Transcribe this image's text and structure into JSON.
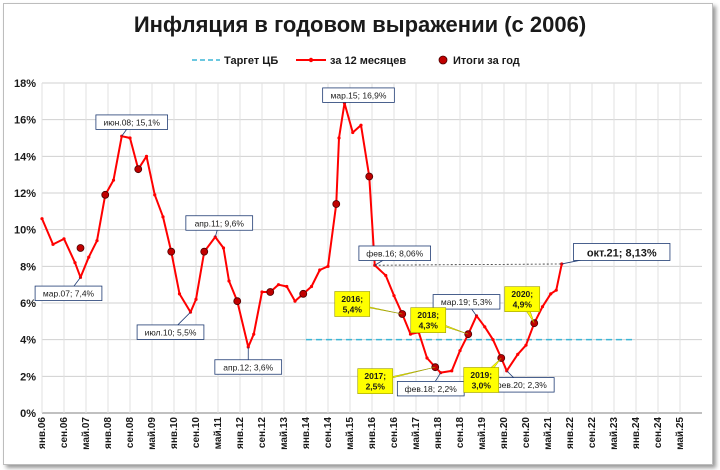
{
  "chart_data": {
    "type": "line",
    "title": "Инфляция в годовом выражении (с 2006)",
    "ylim": [
      0,
      18
    ],
    "yticks": [
      "0%",
      "2%",
      "4%",
      "6%",
      "8%",
      "10%",
      "12%",
      "14%",
      "16%",
      "18%"
    ],
    "grid": true,
    "legend_position": "top",
    "legend": [
      "Таргет ЦБ",
      "за 12 месяцев",
      "Итоги за год"
    ],
    "x_tick_labels": [
      "янв.06",
      "сен.06",
      "май.07",
      "янв.08",
      "сен.08",
      "май.09",
      "янв.10",
      "сен.10",
      "май.11",
      "янв.12",
      "сен.12",
      "май.13",
      "янв.14",
      "сен.14",
      "май.15",
      "янв.16",
      "сен.16",
      "май.17",
      "янв.18",
      "сен.18",
      "май.19",
      "янв.20",
      "сен.20",
      "май.21",
      "янв.22",
      "сен.22",
      "май.23",
      "янв.24",
      "сен.24",
      "май.25"
    ],
    "series": [
      {
        "name": "за 12 месяцев",
        "color": "#ff0000",
        "months": [
          "2006-01",
          "2006-05",
          "2006-09",
          "2007-01",
          "2007-03",
          "2007-06",
          "2007-09",
          "2007-12",
          "2008-03",
          "2008-06",
          "2008-09",
          "2008-12",
          "2009-03",
          "2009-06",
          "2009-09",
          "2009-12",
          "2010-03",
          "2010-07",
          "2010-09",
          "2010-12",
          "2011-04",
          "2011-07",
          "2011-09",
          "2011-12",
          "2012-04",
          "2012-06",
          "2012-09",
          "2012-12",
          "2013-03",
          "2013-06",
          "2013-09",
          "2013-12",
          "2014-03",
          "2014-06",
          "2014-09",
          "2014-12",
          "2015-01",
          "2015-03",
          "2015-06",
          "2015-09",
          "2015-12",
          "2016-02",
          "2016-06",
          "2016-09",
          "2016-12",
          "2017-03",
          "2017-06",
          "2017-09",
          "2017-12",
          "2018-02",
          "2018-06",
          "2018-09",
          "2018-12",
          "2019-03",
          "2019-06",
          "2019-09",
          "2019-12",
          "2020-02",
          "2020-06",
          "2020-09",
          "2020-12",
          "2021-03",
          "2021-06",
          "2021-08",
          "2021-10"
        ],
        "values": [
          10.6,
          9.2,
          9.5,
          8.2,
          7.4,
          8.5,
          9.4,
          11.9,
          12.7,
          15.1,
          15.0,
          13.3,
          14.0,
          11.9,
          10.7,
          8.8,
          6.5,
          5.5,
          6.2,
          8.8,
          9.6,
          9.0,
          7.2,
          6.1,
          3.6,
          4.3,
          6.6,
          6.6,
          7.0,
          6.9,
          6.1,
          6.5,
          6.9,
          7.8,
          8.0,
          11.4,
          15.0,
          16.9,
          15.3,
          15.7,
          12.9,
          8.06,
          7.5,
          6.4,
          5.4,
          4.3,
          4.4,
          3.0,
          2.5,
          2.2,
          2.3,
          3.4,
          4.3,
          5.3,
          4.7,
          4.0,
          3.0,
          2.3,
          3.2,
          3.7,
          4.9,
          5.8,
          6.5,
          6.7,
          8.13
        ]
      }
    ],
    "target": {
      "name": "Таргет ЦБ",
      "value": 4,
      "start": "2014-01",
      "end": "2023-12",
      "color": "#3cb6d6"
    },
    "annual_results": [
      {
        "month": "2007-12",
        "value": 11.9
      },
      {
        "month": "2008-12",
        "value": 13.3
      },
      {
        "month": "2009-12",
        "value": 8.8
      },
      {
        "month": "2010-12",
        "value": 8.8
      },
      {
        "month": "2011-12",
        "value": 6.1
      },
      {
        "month": "2012-12",
        "value": 6.6
      },
      {
        "month": "2013-12",
        "value": 6.5
      },
      {
        "month": "2014-12",
        "value": 11.4
      },
      {
        "month": "2015-12",
        "value": 12.9
      },
      {
        "month": "2016-12",
        "value": 5.4
      },
      {
        "month": "2017-12",
        "value": 2.5
      },
      {
        "month": "2018-12",
        "value": 4.3
      },
      {
        "month": "2019-12",
        "value": 3.0
      },
      {
        "month": "2020-12",
        "value": 4.9
      },
      {
        "month": "2007-03",
        "value": 9.0
      }
    ],
    "annotations": [
      {
        "text": "мар.07; 7,4%",
        "month": "2007-03",
        "value": 7.4,
        "style": "plain"
      },
      {
        "text": "июн.08; 15,1%",
        "month": "2008-06",
        "value": 15.1,
        "style": "plain"
      },
      {
        "text": "июл.10; 5,5%",
        "month": "2010-07",
        "value": 5.5,
        "style": "plain"
      },
      {
        "text": "апр.11; 9,6%",
        "month": "2011-04",
        "value": 9.6,
        "style": "plain"
      },
      {
        "text": "апр.12; 3,6%",
        "month": "2012-04",
        "value": 3.6,
        "style": "plain"
      },
      {
        "text": "мар.15; 16,9%",
        "month": "2015-03",
        "value": 16.9,
        "style": "plain"
      },
      {
        "text": "фев.16; 8,06%",
        "month": "2016-02",
        "value": 8.06,
        "style": "plain"
      },
      {
        "text": "фев.18; 2,2%",
        "month": "2018-02",
        "value": 2.2,
        "style": "plain"
      },
      {
        "text": "мар.19; 5,3%",
        "month": "2019-03",
        "value": 5.3,
        "style": "plain"
      },
      {
        "text": "фев.20; 2,3%",
        "month": "2020-02",
        "value": 2.3,
        "style": "plain"
      },
      {
        "text": "окт.21; 8,13%",
        "month": "2021-10",
        "value": 8.13,
        "style": "big"
      },
      {
        "text": "2016;\n5,4%",
        "month": "2016-12",
        "value": 5.4,
        "style": "yellow"
      },
      {
        "text": "2017;\n2,5%",
        "month": "2017-12",
        "value": 2.5,
        "style": "yellow"
      },
      {
        "text": "2018;\n4,3%",
        "month": "2018-12",
        "value": 4.3,
        "style": "yellow"
      },
      {
        "text": "2019;\n3,0%",
        "month": "2019-12",
        "value": 3.0,
        "style": "yellow"
      },
      {
        "text": "2020;\n4,9%",
        "month": "2020-12",
        "value": 4.9,
        "style": "yellow"
      }
    ]
  }
}
